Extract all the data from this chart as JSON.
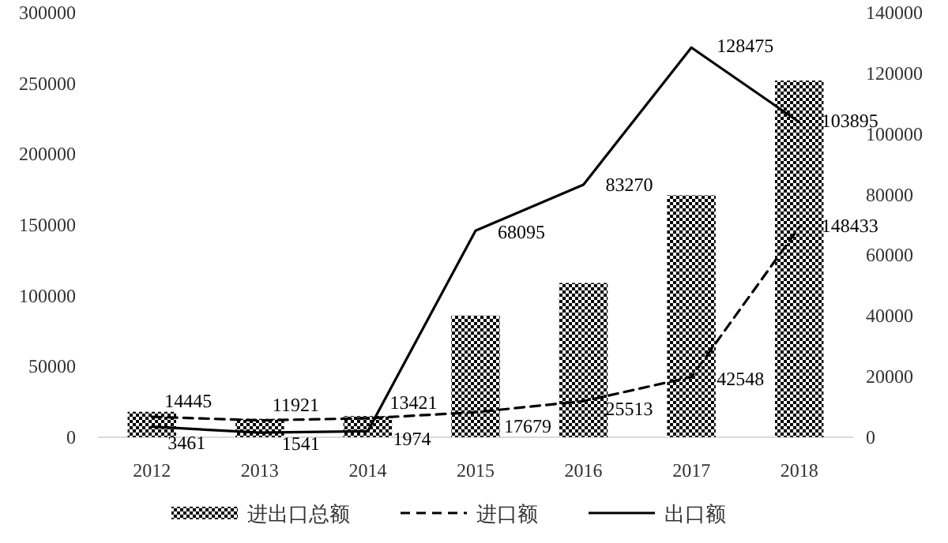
{
  "chart_data": {
    "type": "bar",
    "categories": [
      "2012",
      "2013",
      "2014",
      "2015",
      "2016",
      "2017",
      "2018"
    ],
    "series": [
      {
        "name": "进出口总额",
        "color": "#000000",
        "values": [
          18000,
          13000,
          15000,
          86000,
          109000,
          171000,
          252000
        ]
      },
      {
        "name": "进口额",
        "type": "line",
        "line_style": "dashed",
        "color": "#000000",
        "values": [
          14445,
          11921,
          13421,
          17679,
          25513,
          42548,
          148433
        ],
        "value_labels": [
          "14445",
          "11921",
          "13421",
          "17679",
          "25513",
          "42548",
          "148433"
        ]
      },
      {
        "name": "出口额",
        "type": "line",
        "line_style": "solid",
        "color": "#000000",
        "axis": "y2",
        "values": [
          3461,
          1541,
          1974,
          68095,
          83270,
          128475,
          103895
        ],
        "value_labels": [
          "3461",
          "1541",
          "1974",
          "68095",
          "83270",
          "128475",
          "103895"
        ]
      }
    ],
    "ylim": [
      0,
      300000
    ],
    "yticks": [
      0,
      50000,
      100000,
      150000,
      200000,
      250000,
      300000
    ],
    "y2lim": [
      0,
      140000
    ],
    "y2ticks": [
      0,
      20000,
      40000,
      60000,
      80000,
      100000,
      120000,
      140000
    ],
    "legend": "bottom",
    "grid": false,
    "marker": "none"
  }
}
